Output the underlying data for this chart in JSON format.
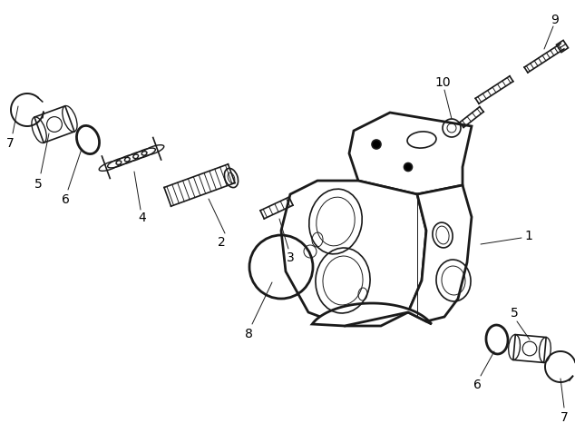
{
  "background_color": "#ffffff",
  "line_color": "#1a1a1a",
  "text_color": "#000000",
  "fig_width": 6.34,
  "fig_height": 4.89,
  "dpi": 100
}
